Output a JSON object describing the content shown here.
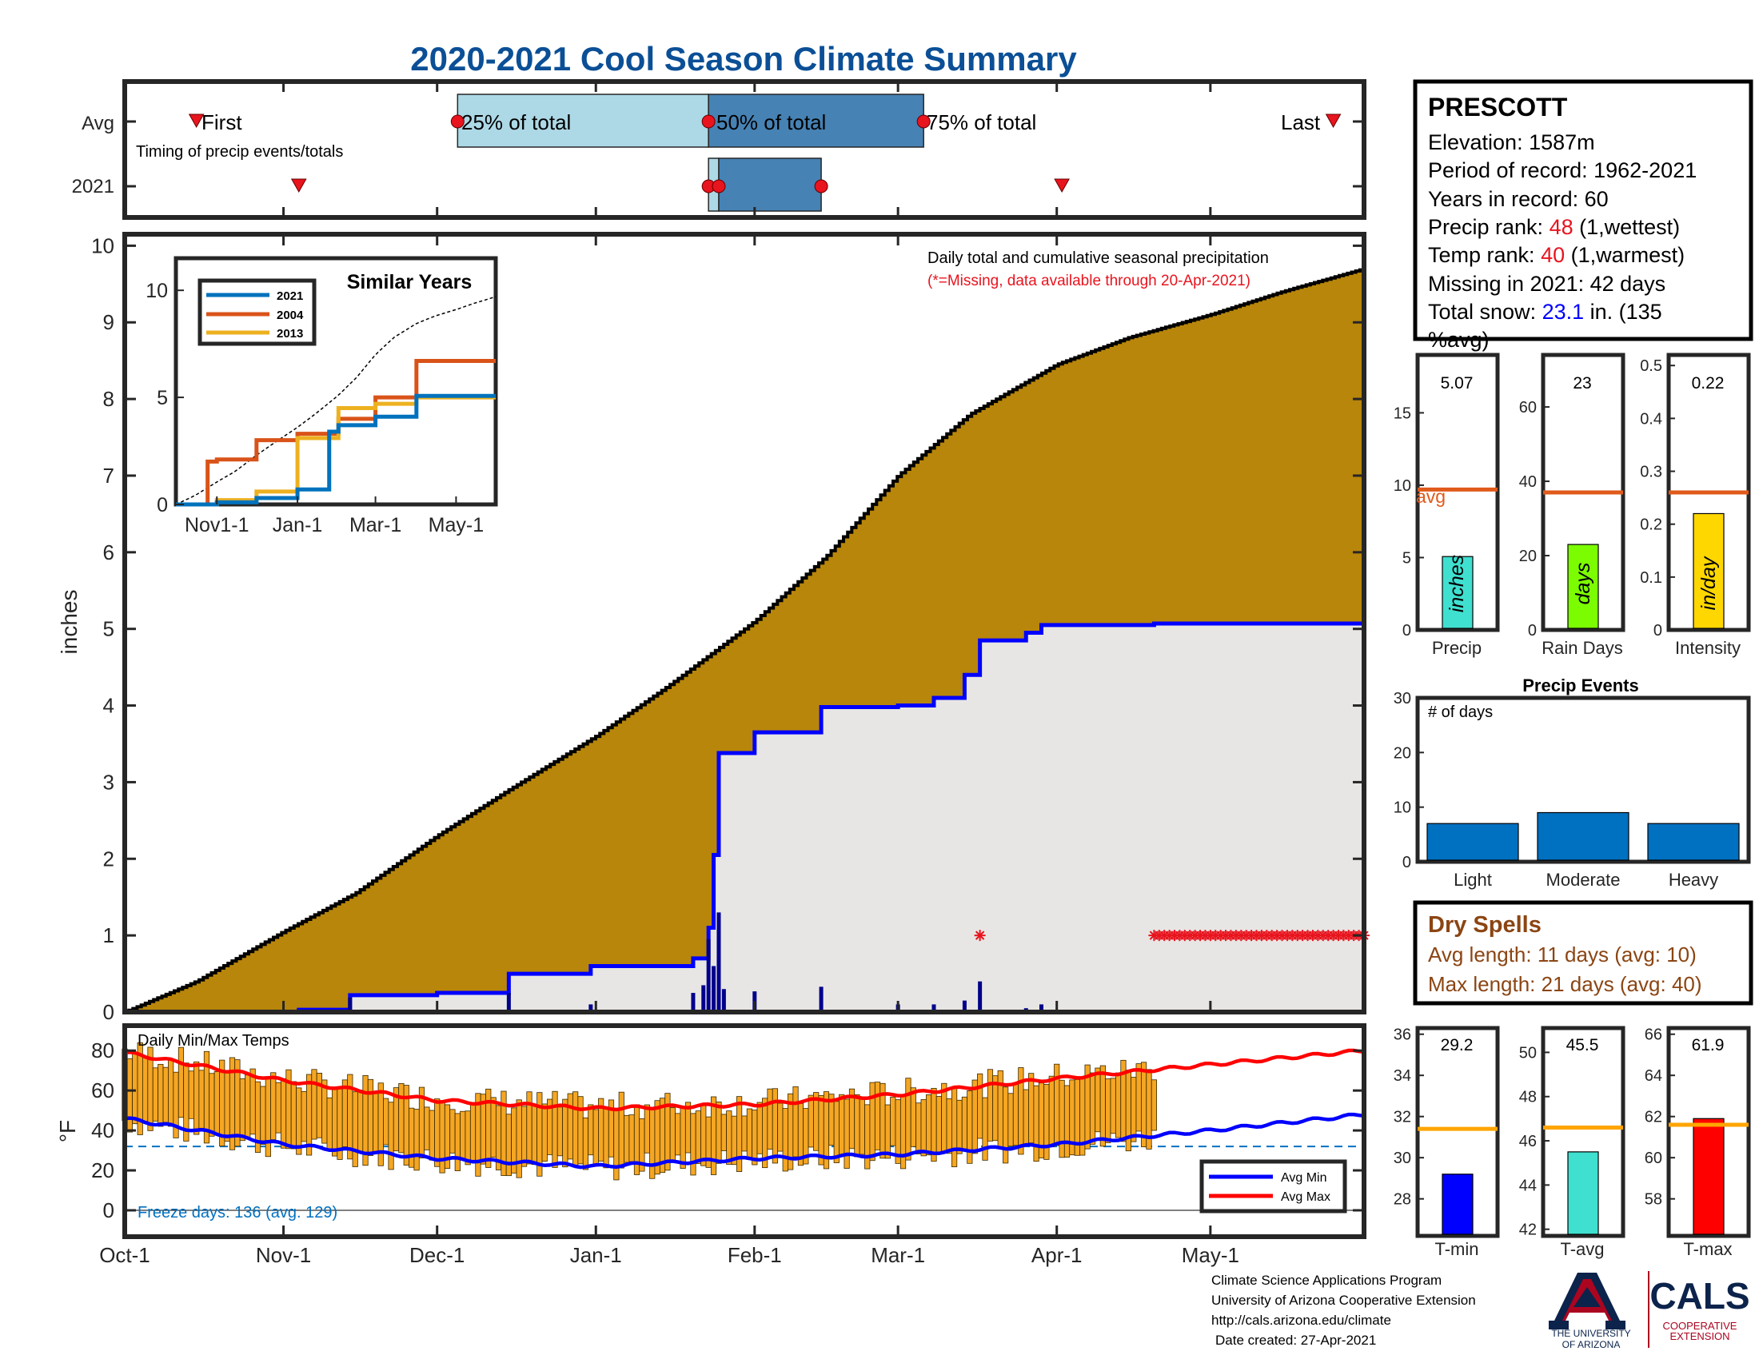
{
  "title": "2020-2021 Cool Season Climate Summary",
  "timing": {
    "row_labels": [
      "Avg",
      "2021"
    ],
    "subtitle": "Timing of precip events/totals",
    "first_label": "First",
    "last_label": "Last",
    "pct25_label": "25% of total",
    "pct50_label": "50% of total",
    "pct75_label": "75% of total",
    "avg": {
      "first": "2020-10-15",
      "p25": "2020-12-05",
      "p50": "2021-01-23",
      "p75": "2021-03-06",
      "last": "2021-05-25"
    },
    "y2021": {
      "first": "2020-11-04",
      "p25": "2021-01-23",
      "p50": "2021-01-25",
      "p75": "2021-02-14",
      "last": "2021-04-02"
    }
  },
  "station": {
    "name": "PRESCOTT",
    "elevation_label": "Elevation: 1587m",
    "period_label": "Period of record: 1962-2021",
    "years_label": "Years in record: 60",
    "precip_rank_prefix": "Precip rank: ",
    "precip_rank_value": "48",
    "precip_rank_suffix": " (1,wettest)",
    "temp_rank_prefix": "Temp rank: ",
    "temp_rank_value": "40",
    "temp_rank_suffix": " (1,warmest)",
    "missing_label": "Missing in 2021: 42 days",
    "snow_prefix": "Total snow: ",
    "snow_value": "23.1",
    "snow_suffix": " in. (135",
    "snow_suffix2": "%avg)"
  },
  "main_chart": {
    "ylabel": "inches",
    "annotation": "Daily total and cumulative seasonal precipitation",
    "missing_note": "(*=Missing, data available through 20-Apr-2021)",
    "x_ticks": [
      "Oct-1",
      "Nov-1",
      "Dec-1",
      "Jan-1",
      "Feb-1",
      "Mar-1",
      "Apr-1",
      "May-1"
    ],
    "y_ticks": [
      "0",
      "1",
      "2",
      "3",
      "4",
      "5",
      "6",
      "7",
      "8",
      "9",
      "10"
    ]
  },
  "similar_years": {
    "title": "Similar Years",
    "legend": [
      "2021",
      "2004",
      "2013"
    ],
    "x_ticks": [
      "Nov1-1",
      "Jan-1",
      "Mar-1",
      "May-1"
    ],
    "y_ticks": [
      "0",
      "5",
      "10"
    ]
  },
  "precip_bars": {
    "precip": {
      "value_label": "5.07",
      "unit": "inches",
      "xlabel": "Precip",
      "avg_text": "avg",
      "y_ticks": [
        "0",
        "5",
        "10",
        "15"
      ]
    },
    "raindays": {
      "value_label": "23",
      "unit": "days",
      "xlabel": "Rain Days",
      "y_ticks": [
        "0",
        "20",
        "40",
        "60"
      ]
    },
    "intensity": {
      "value_label": "0.22",
      "unit": "in/day",
      "xlabel": "Intensity",
      "y_ticks": [
        "0",
        "0.1",
        "0.2",
        "0.3",
        "0.4",
        "0.5"
      ]
    }
  },
  "precip_events": {
    "title": "Precip Events",
    "ylabel": "# of days",
    "y_ticks": [
      "0",
      "10",
      "20",
      "30"
    ]
  },
  "dry_spells": {
    "title": "Dry Spells",
    "avg_length": "Avg length: 11 days (avg: 10)",
    "max_length": "Max length: 21 days (avg: 40)"
  },
  "temp_chart": {
    "ylabel": "°F",
    "title": "Daily Min/Max Temps",
    "freeze_days": "Freeze days: 136 (avg. 129)",
    "legend": [
      "Avg Min",
      "Avg Max"
    ],
    "y_ticks": [
      "0",
      "20",
      "40",
      "60",
      "80"
    ]
  },
  "temp_bars": {
    "tmin": {
      "value_label": "29.2",
      "xlabel": "T-min",
      "y_ticks": [
        "28",
        "30",
        "32",
        "34",
        "36"
      ]
    },
    "tavg": {
      "value_label": "45.5",
      "xlabel": "T-avg",
      "y_ticks": [
        "42",
        "44",
        "46",
        "48",
        "50"
      ]
    },
    "tmax": {
      "value_label": "61.9",
      "xlabel": "T-max",
      "y_ticks": [
        "58",
        "60",
        "62",
        "64",
        "66"
      ]
    }
  },
  "footer": {
    "line1": "Climate Science Applications Program",
    "line2": "University of Arizona Cooperative Extension",
    "line3": "http://cals.arizona.edu/climate",
    "line4": "Date created: 27-Apr-2021",
    "ua_logo_text1": "THE UNIVERSITY",
    "ua_logo_text2": "OF ARIZONA",
    "cals_text": "CALS",
    "cals_sub1": "COOPERATIVE",
    "cals_sub2": "EXTENSION"
  },
  "colors": {
    "title": "#0b4f96",
    "avg_cum_fill": "#b8860b",
    "obs_fill": "#e8e6e4",
    "obs_line": "#0000ff",
    "daily_bar": "#00008b",
    "missing": "#e8141e",
    "q1_box": "#add8e6",
    "q2_box": "#4682b4",
    "avg_line": "#e05a1a",
    "precip_bar": "#40e0d0",
    "raindays_bar": "#7cfc00",
    "intensity_bar": "#ffd700",
    "events_bar": "#0070c0",
    "temp_bar": "#f5a623",
    "avg_min_line": "#0000ff",
    "avg_max_line": "#ff0000",
    "freeze_line": "#0070c0",
    "tmin_bar": "#0000ff",
    "tavg_bar": "#40e0d0",
    "tmax_bar": "#ff0000",
    "temp_avg_line": "#ffa500",
    "dry_title": "#8b4513",
    "y2004": "#d95319",
    "y2013": "#edb120",
    "y2021": "#0072bd"
  },
  "chart_data": [
    {
      "type": "area",
      "title": "Daily total and cumulative seasonal precipitation",
      "ylabel": "inches",
      "ylim": [
        0,
        10
      ],
      "xlim": [
        "2020-10-01",
        "2021-05-31"
      ],
      "series": [
        {
          "name": "avg_cumulative",
          "x": [
            "2020-10-01",
            "2020-10-15",
            "2020-11-01",
            "2020-11-15",
            "2020-12-01",
            "2020-12-15",
            "2021-01-01",
            "2021-01-15",
            "2021-02-01",
            "2021-02-15",
            "2021-03-01",
            "2021-03-15",
            "2021-04-01",
            "2021-04-15",
            "2021-05-01",
            "2021-05-15",
            "2021-05-31"
          ],
          "values": [
            0.0,
            0.4,
            1.05,
            1.55,
            2.3,
            2.9,
            3.6,
            4.25,
            5.1,
            5.95,
            7.0,
            7.8,
            8.45,
            8.8,
            9.1,
            9.4,
            9.7
          ]
        },
        {
          "name": "2021_cumulative",
          "x": [
            "2020-10-01",
            "2020-11-04",
            "2020-11-14",
            "2020-12-01",
            "2020-12-15",
            "2020-12-31",
            "2021-01-20",
            "2021-01-23",
            "2021-01-24",
            "2021-01-25",
            "2021-02-01",
            "2021-02-14",
            "2021-03-01",
            "2021-03-08",
            "2021-03-14",
            "2021-03-17",
            "2021-03-26",
            "2021-03-29",
            "2021-04-20"
          ],
          "values": [
            0.0,
            0.03,
            0.22,
            0.25,
            0.5,
            0.6,
            0.7,
            1.1,
            2.05,
            3.38,
            3.65,
            3.98,
            4.0,
            4.1,
            4.4,
            4.85,
            4.95,
            5.05,
            5.07
          ]
        },
        {
          "name": "daily_precip",
          "x": [
            "2020-11-14",
            "2020-12-15",
            "2020-12-31",
            "2021-01-20",
            "2021-01-22",
            "2021-01-23",
            "2021-01-24",
            "2021-01-25",
            "2021-01-26",
            "2021-02-01",
            "2021-02-14",
            "2021-03-01",
            "2021-03-08",
            "2021-03-14",
            "2021-03-17",
            "2021-03-26",
            "2021-03-29"
          ],
          "values": [
            0.19,
            0.25,
            0.1,
            0.25,
            0.35,
            0.95,
            0.6,
            1.3,
            0.3,
            0.27,
            0.33,
            0.1,
            0.1,
            0.15,
            0.4,
            0.05,
            0.1
          ]
        }
      ],
      "missing_dates": [
        "2021-03-17",
        "2021-04-20 to 2021-05-31"
      ]
    },
    {
      "type": "line",
      "title": "Similar Years",
      "ylim": [
        0,
        10
      ],
      "series": [
        {
          "name": "2021",
          "x": [
            "Oct-1",
            "Nov-1",
            "Dec-1",
            "Jan-1",
            "Jan-25",
            "Feb-1",
            "Mar-1",
            "Apr-1",
            "May-31"
          ],
          "values": [
            0,
            0.1,
            0.3,
            0.7,
            3.4,
            3.7,
            4.1,
            5.07,
            5.07
          ]
        },
        {
          "name": "2004",
          "x": [
            "Oct-1",
            "Oct-25",
            "Nov-1",
            "Dec-1",
            "Jan-1",
            "Feb-1",
            "Mar-1",
            "Apr-1",
            "May-31"
          ],
          "values": [
            0,
            2.0,
            2.1,
            3.0,
            3.3,
            4.0,
            5.0,
            6.7,
            6.7
          ]
        },
        {
          "name": "2013",
          "x": [
            "Oct-1",
            "Nov-1",
            "Dec-1",
            "Jan-1",
            "Feb-1",
            "Mar-1",
            "Apr-1",
            "May-31"
          ],
          "values": [
            0,
            0.2,
            0.6,
            3.1,
            4.5,
            4.7,
            5.0,
            5.0
          ]
        }
      ]
    },
    {
      "type": "bar",
      "title": "Precip",
      "categories": [
        "Precip"
      ],
      "values": [
        5.07
      ],
      "avg": 9.7,
      "ylim": [
        0,
        19
      ],
      "ylabel": "inches"
    },
    {
      "type": "bar",
      "title": "Rain Days",
      "categories": [
        "Rain Days"
      ],
      "values": [
        23
      ],
      "avg": 37,
      "ylim": [
        0,
        74
      ]
    },
    {
      "type": "bar",
      "title": "Intensity",
      "categories": [
        "Intensity"
      ],
      "values": [
        0.22
      ],
      "avg": 0.26,
      "ylim": [
        0,
        0.52
      ]
    },
    {
      "type": "bar",
      "title": "Precip Events",
      "ylabel": "# of days",
      "categories": [
        "Light",
        "Moderate",
        "Heavy"
      ],
      "values": [
        7,
        9,
        7
      ],
      "ylim": [
        0,
        30
      ]
    },
    {
      "type": "bar",
      "title": "Daily Min/Max Temps",
      "ylabel": "°F",
      "ylim": [
        -3,
        92
      ],
      "xlim": [
        "2020-10-01",
        "2021-05-31"
      ],
      "ranges": {
        "start": "2020-10-01",
        "end": "2021-04-20",
        "min_start": 40,
        "min_end": 30,
        "max_start": 85,
        "max_end": 72
      },
      "series": [
        {
          "name": "Avg Min",
          "x": [
            "Oct-1",
            "Nov-1",
            "Dec-1",
            "Jan-1",
            "Feb-1",
            "Mar-1",
            "Apr-1",
            "May-1",
            "May-31"
          ],
          "values": [
            46,
            33,
            26,
            22,
            26,
            28,
            33,
            40,
            48
          ]
        },
        {
          "name": "Avg Max",
          "x": [
            "Oct-1",
            "Nov-1",
            "Dec-1",
            "Jan-1",
            "Feb-1",
            "Mar-1",
            "Apr-1",
            "May-1",
            "May-31"
          ],
          "values": [
            79,
            65,
            55,
            51,
            53,
            58,
            66,
            73,
            80
          ]
        }
      ],
      "freeze_line": 32
    },
    {
      "type": "bar",
      "title": "T-min",
      "categories": [
        "T-min"
      ],
      "values": [
        29.2
      ],
      "avg": 31.4,
      "ylim": [
        26.2,
        36.3
      ]
    },
    {
      "type": "bar",
      "title": "T-avg",
      "categories": [
        "T-avg"
      ],
      "values": [
        45.5
      ],
      "avg": 46.6,
      "ylim": [
        41.7,
        51.1
      ]
    },
    {
      "type": "bar",
      "title": "T-max",
      "categories": [
        "T-max"
      ],
      "values": [
        61.9
      ],
      "avg": 61.6,
      "ylim": [
        56.2,
        66.3
      ]
    }
  ]
}
